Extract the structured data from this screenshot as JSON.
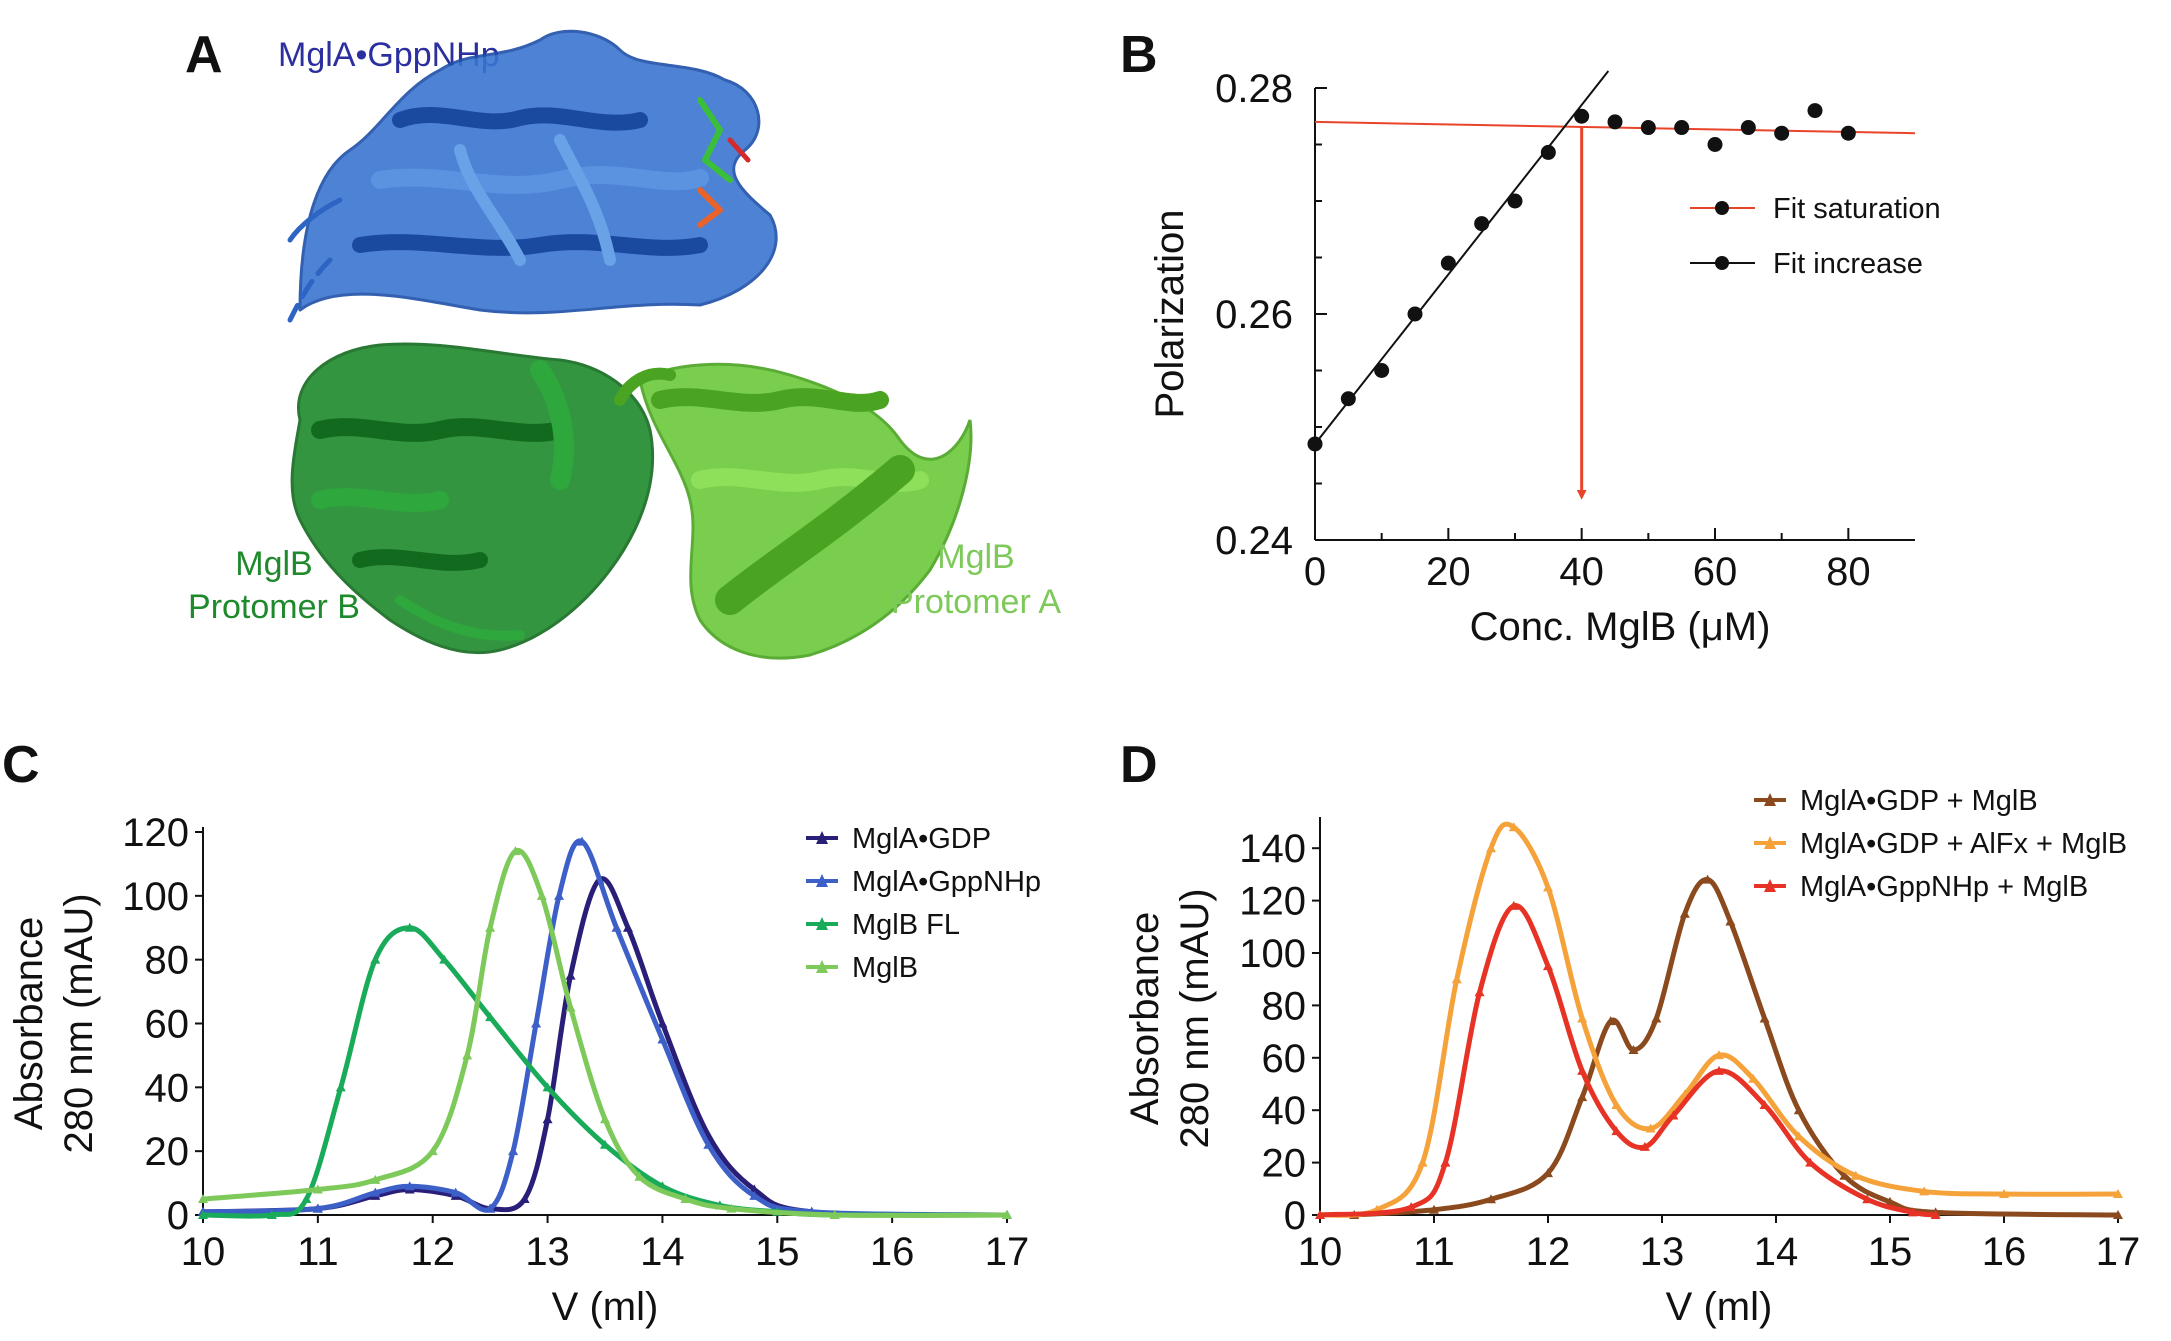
{
  "panel_a": {
    "letter": "A",
    "label_mgla": "MglA•GppNHp",
    "label_b_line1": "MglB",
    "label_b_line2": "Protomer B",
    "label_a_line1": "MglB",
    "label_a_line2": "Protomer A",
    "colors": {
      "mgla": "#2e64c4",
      "mgla_label": "#2c2fa0",
      "protomer_b": "#1f8a2c",
      "protomer_a": "#6cc93a"
    }
  },
  "panel_b": {
    "letter": "B",
    "legend": [
      {
        "label": "Fit saturation",
        "color": "#e8442a"
      },
      {
        "label": "Fit increase",
        "color": "#111111"
      }
    ]
  },
  "panel_c": {
    "letter": "C"
  },
  "panel_d": {
    "letter": "D"
  },
  "chart_data": [
    {
      "type": "scatter",
      "panel": "B",
      "xlabel": "Conc. MglB (μM)",
      "ylabel": "Polarization",
      "xlim": [
        0,
        90
      ],
      "ylim": [
        0.24,
        0.28
      ],
      "xticks": [
        0,
        20,
        40,
        60,
        80
      ],
      "yticks": [
        0.24,
        0.26,
        0.28
      ],
      "ytick_labels": [
        "0.24",
        "0.26",
        "0.28"
      ],
      "points": {
        "x": [
          0,
          5,
          10,
          15,
          20,
          25,
          30,
          35,
          40,
          45,
          50,
          55,
          60,
          65,
          70,
          75,
          80
        ],
        "y": [
          0.2485,
          0.2525,
          0.255,
          0.26,
          0.2645,
          0.268,
          0.27,
          0.2743,
          0.2775,
          0.277,
          0.2765,
          0.2765,
          0.275,
          0.2765,
          0.276,
          0.278,
          0.276
        ]
      },
      "fits": [
        {
          "name": "Fit saturation",
          "color": "#e8442a",
          "x": [
            0,
            90
          ],
          "y": [
            0.277,
            0.276
          ]
        },
        {
          "name": "Fit increase",
          "color": "#111111",
          "x": [
            0,
            44
          ],
          "y": [
            0.2485,
            0.2815
          ]
        }
      ],
      "arrow": {
        "x": 40,
        "y_from": 0.2765,
        "y_to": 0.244,
        "color": "#e8442a"
      }
    },
    {
      "type": "line",
      "panel": "C",
      "xlabel": "V (ml)",
      "ylabel_line1": "Absorbance",
      "ylabel_line2": "280 nm (mAU)",
      "xlim": [
        10,
        17
      ],
      "ylim": [
        0,
        120
      ],
      "xticks": [
        10,
        11,
        12,
        13,
        14,
        15,
        16,
        17
      ],
      "yticks": [
        0,
        20,
        40,
        60,
        80,
        100,
        120
      ],
      "series": [
        {
          "name": "MglA•GDP",
          "color": "#2a1f78",
          "x": [
            10,
            11,
            11.5,
            11.8,
            12.2,
            12.5,
            12.8,
            13.0,
            13.2,
            13.45,
            13.7,
            14.0,
            14.4,
            14.8,
            15.3,
            17
          ],
          "y": [
            1,
            2,
            6,
            8,
            6,
            2,
            5,
            30,
            75,
            105,
            90,
            60,
            25,
            8,
            1,
            0
          ]
        },
        {
          "name": "MglA•GppNHp",
          "color": "#3d5fc8",
          "x": [
            10,
            11,
            11.5,
            11.8,
            12.2,
            12.5,
            12.7,
            12.9,
            13.1,
            13.3,
            13.6,
            14.0,
            14.4,
            14.8,
            15.3,
            17
          ],
          "y": [
            1,
            2,
            7,
            9,
            7,
            2,
            20,
            60,
            100,
            117,
            90,
            55,
            22,
            6,
            1,
            0
          ]
        },
        {
          "name": "MglB FL",
          "color": "#1aab5a",
          "x": [
            10,
            10.6,
            10.9,
            11.2,
            11.5,
            11.8,
            12.1,
            12.5,
            13.0,
            13.5,
            14.0,
            14.5,
            15.0,
            15.5,
            17
          ],
          "y": [
            0,
            0,
            5,
            40,
            80,
            90,
            80,
            62,
            40,
            22,
            9,
            3,
            1,
            0,
            0
          ]
        },
        {
          "name": "MglB",
          "color": "#7dc95a",
          "x": [
            10,
            11,
            11.5,
            12.0,
            12.3,
            12.5,
            12.72,
            12.95,
            13.2,
            13.5,
            13.8,
            14.2,
            14.6,
            15.5,
            17
          ],
          "y": [
            5,
            8,
            11,
            20,
            50,
            90,
            114,
            100,
            65,
            30,
            12,
            5,
            2,
            0,
            0
          ]
        }
      ]
    },
    {
      "type": "line",
      "panel": "D",
      "xlabel": "V (ml)",
      "ylabel_line1": "Absorbance",
      "ylabel_line2": "280 nm (mAU)",
      "xlim": [
        10,
        17
      ],
      "ylim": [
        0,
        150
      ],
      "xticks": [
        10,
        11,
        12,
        13,
        14,
        15,
        16,
        17
      ],
      "yticks": [
        0,
        20,
        40,
        60,
        80,
        100,
        120,
        140
      ],
      "series": [
        {
          "name": "MglA•GDP + MglB",
          "color": "#8b4a1e",
          "x": [
            10.3,
            11,
            11.5,
            12.0,
            12.3,
            12.55,
            12.75,
            12.95,
            13.2,
            13.4,
            13.6,
            13.9,
            14.2,
            14.6,
            15.0,
            15.4,
            17
          ],
          "y": [
            0,
            2,
            6,
            16,
            45,
            74,
            63,
            75,
            115,
            128,
            112,
            75,
            40,
            15,
            5,
            1,
            0
          ]
        },
        {
          "name": "MglA•GDP + AlFx + MglB",
          "color": "#f5a23a",
          "x": [
            10,
            10.5,
            10.9,
            11.2,
            11.5,
            11.7,
            12.0,
            12.3,
            12.6,
            12.9,
            13.2,
            13.5,
            13.8,
            14.2,
            14.7,
            15.3,
            16,
            17
          ],
          "y": [
            0,
            2,
            20,
            90,
            140,
            148,
            125,
            75,
            42,
            33,
            46,
            61,
            52,
            30,
            15,
            9,
            8,
            8
          ]
        },
        {
          "name": "MglA•GppNHp + MglB",
          "color": "#e63326",
          "x": [
            10,
            10.8,
            11.1,
            11.4,
            11.7,
            12.0,
            12.3,
            12.6,
            12.85,
            13.1,
            13.5,
            13.9,
            14.3,
            14.8,
            15.2,
            15.4
          ],
          "y": [
            0,
            3,
            20,
            85,
            118,
            95,
            55,
            32,
            26,
            38,
            55,
            42,
            20,
            6,
            1,
            0
          ]
        }
      ]
    }
  ]
}
